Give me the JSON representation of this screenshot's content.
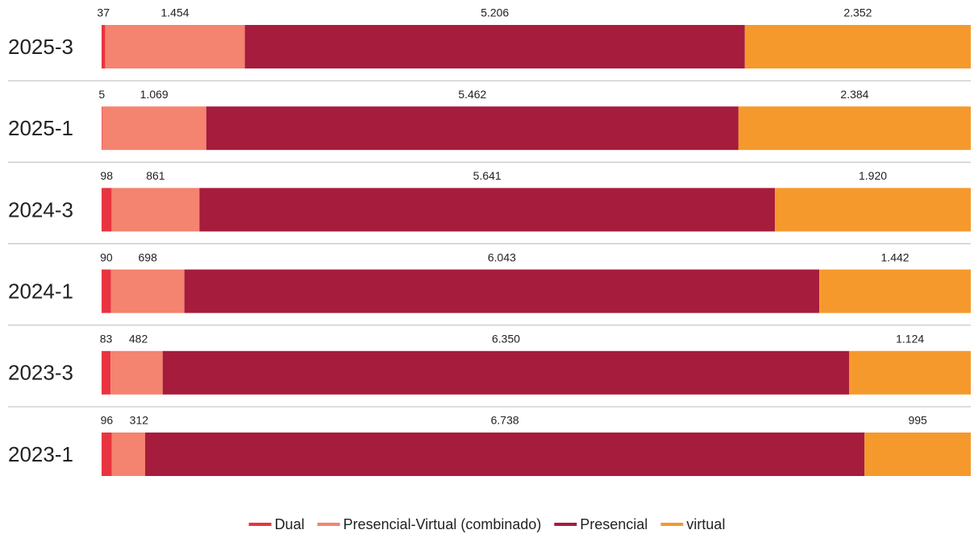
{
  "chart_data": {
    "type": "bar",
    "orientation": "horizontal",
    "stacking": "percent",
    "categories": [
      "2025-3",
      "2025-1",
      "2024-3",
      "2024-1",
      "2023-3",
      "2023-1"
    ],
    "series": [
      {
        "name": "Dual",
        "color": "#e8343f",
        "values": [
          37,
          5,
          98,
          90,
          83,
          96
        ],
        "value_labels": [
          "37",
          "5",
          "98",
          "90",
          "83",
          "96"
        ]
      },
      {
        "name": "Presencial-Virtual (combinado)",
        "color": "#f4836f",
        "values": [
          1454,
          1069,
          861,
          698,
          482,
          312
        ],
        "value_labels": [
          "1.454",
          "1.069",
          "861",
          "698",
          "482",
          "312"
        ]
      },
      {
        "name": "Presencial",
        "color": "#a61c3c",
        "values": [
          5206,
          5462,
          5641,
          6043,
          6350,
          6738
        ],
        "value_labels": [
          "5.206",
          "5.462",
          "5.641",
          "6.043",
          "6.350",
          "6.738"
        ]
      },
      {
        "name": "virtual",
        "color": "#f5992c",
        "values": [
          2352,
          2384,
          1920,
          1442,
          1124,
          995
        ],
        "value_labels": [
          "2.352",
          "2.384",
          "1.920",
          "1.442",
          "1.124",
          "995"
        ]
      }
    ],
    "legend": "bottom"
  }
}
